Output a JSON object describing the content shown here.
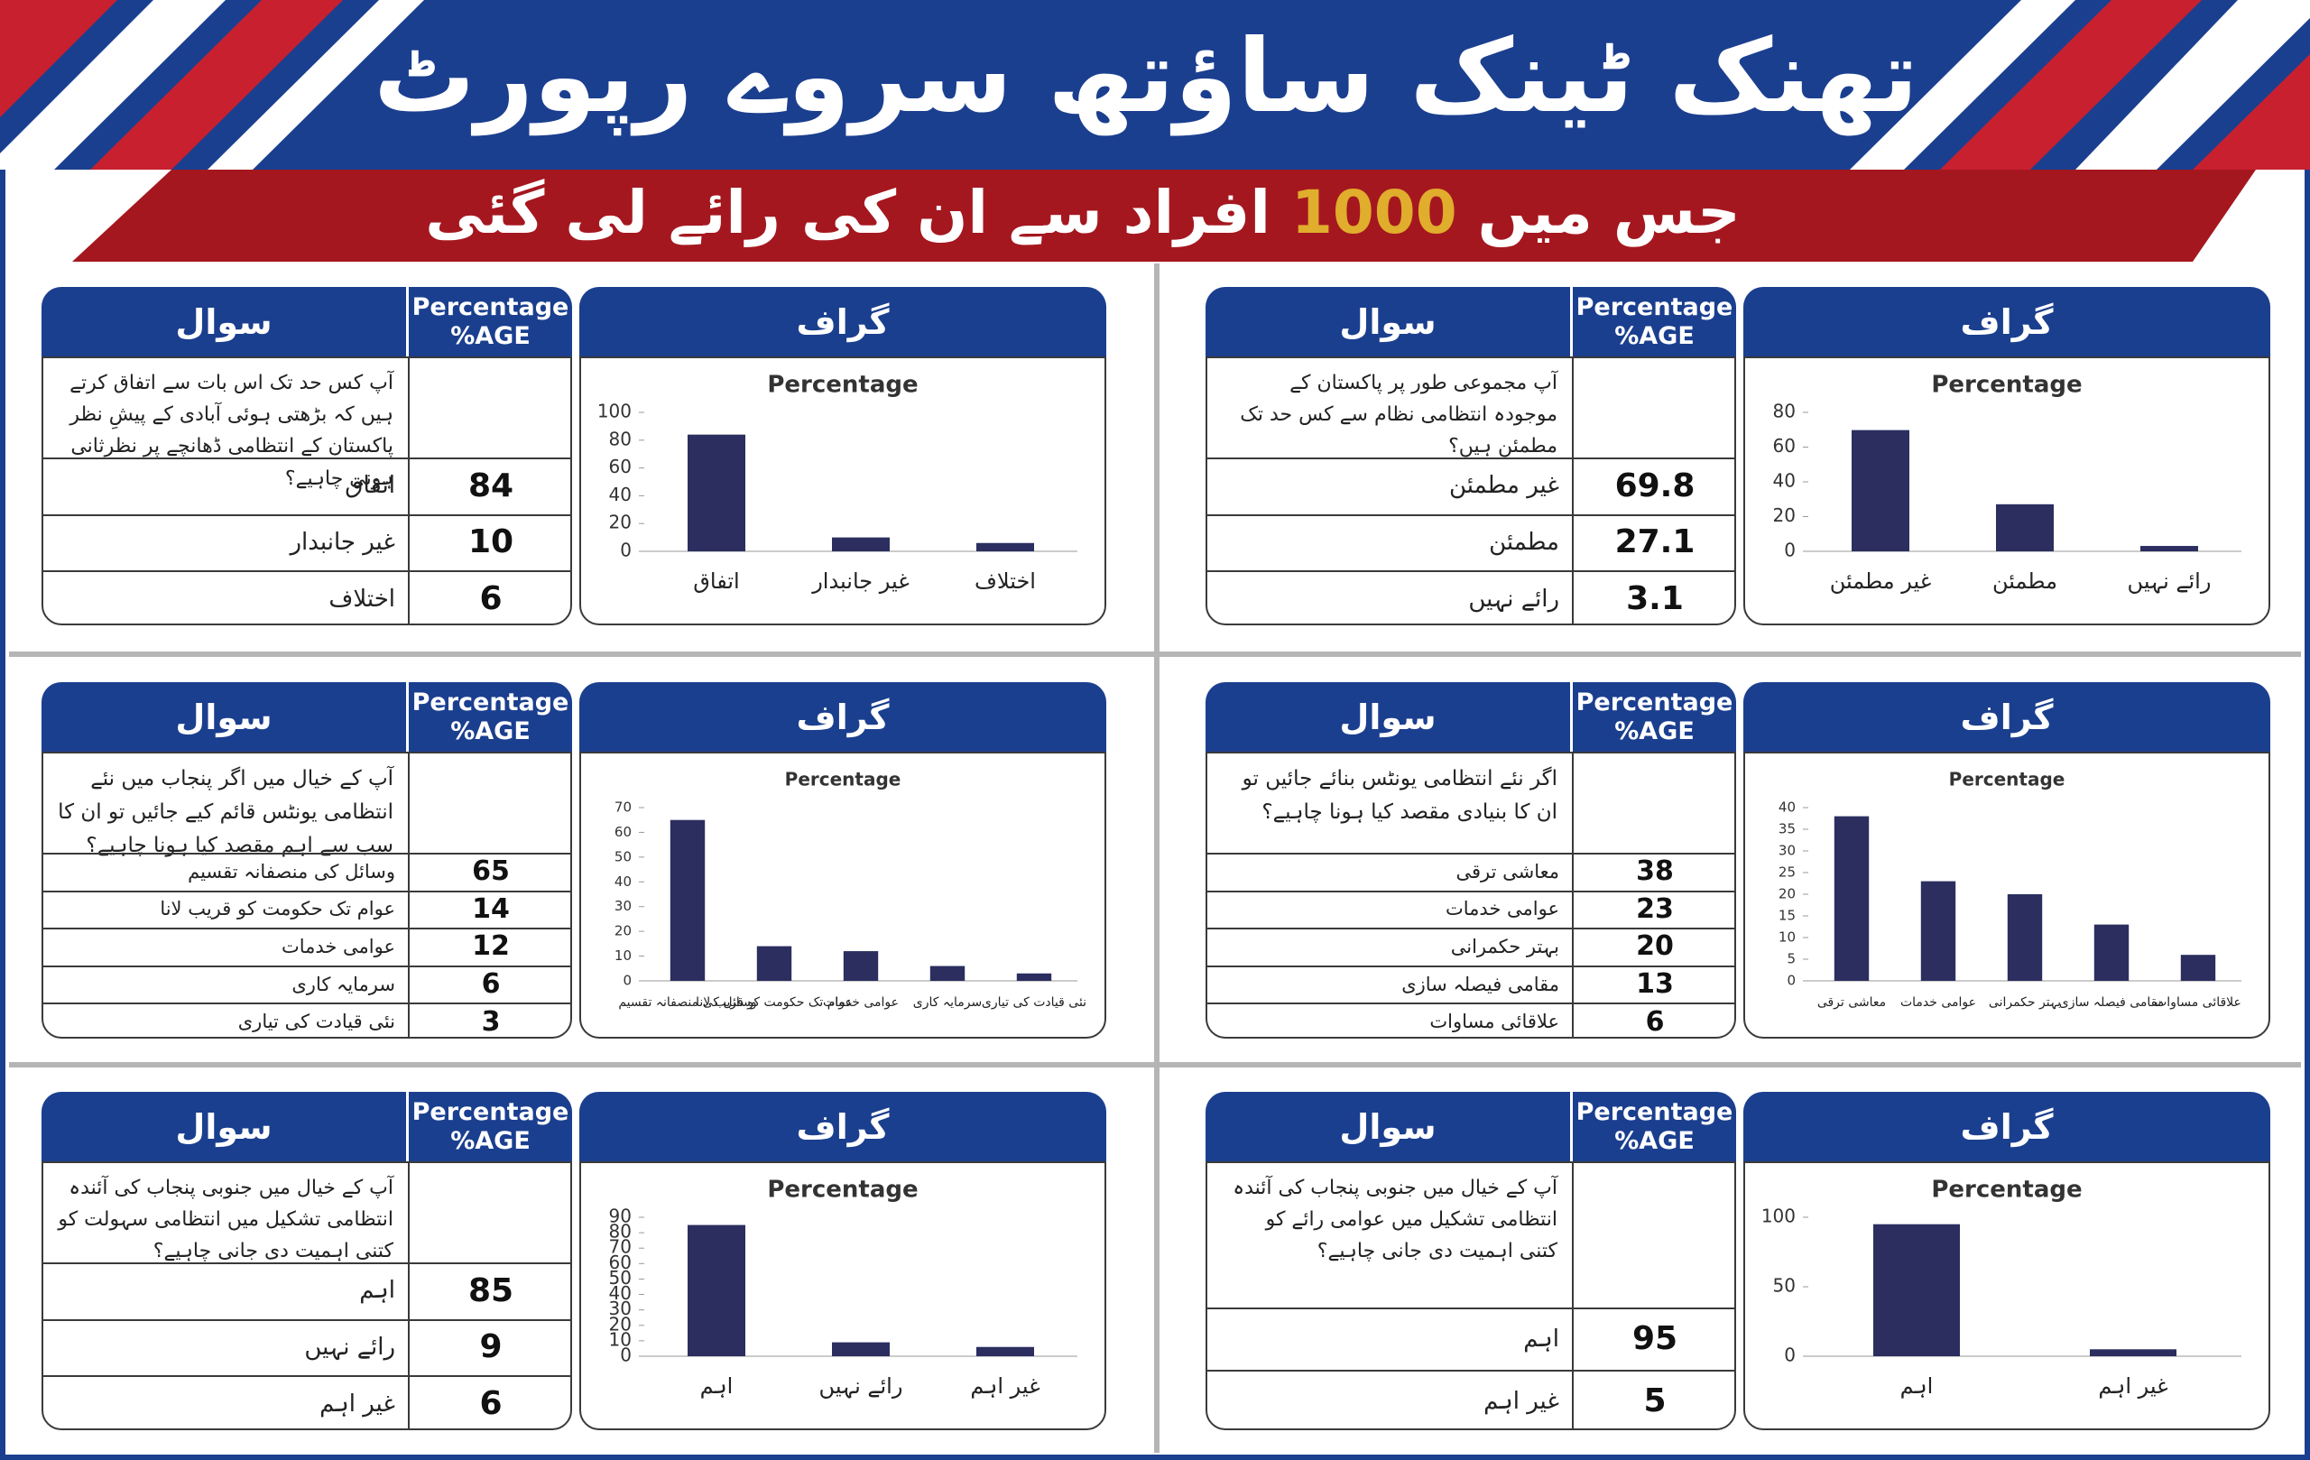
{
  "header": {
    "title": "تھنک ٹینک ساؤتھ سروے رپورٹ",
    "subtitle_before": "جس میں",
    "count": 1000,
    "subtitle_after": "افراد سے ان کی رائے لی گئی"
  },
  "panel_headers": {
    "question": "سوال",
    "percentage": "Percentage",
    "percentage_unit": "%AGE",
    "graph": "گراف"
  },
  "chart_data": [
    {
      "type": "bar",
      "title": "Percentage",
      "question": "آپ مجموعی طور پر پاکستان کے موجودہ انتظامی نظام سے کس حد تک مطمئن ہیں؟",
      "categories": [
        "غیر مطمئن",
        "مطمئن",
        "رائے نہیں"
      ],
      "values": [
        69.8,
        27.1,
        3.1
      ],
      "color": "#2b2e5f",
      "ylim": [
        0,
        80
      ],
      "yticks": [
        0,
        20,
        40,
        60,
        80
      ]
    },
    {
      "type": "bar",
      "title": "Percentage",
      "question": "آپ کس حد تک اس بات سے اتفاق کرتے ہیں کہ بڑھتی ہوئی آبادی کے پیشِ نظر پاکستان کے انتظامی ڈھانچے پر نظرثانی ہونی چاہیے؟",
      "categories": [
        "اتفاق",
        "غیر جانبدار",
        "اختلاف"
      ],
      "values": [
        84,
        10,
        6
      ],
      "color": "#2b2e5f",
      "ylim": [
        0,
        100
      ],
      "yticks": [
        0,
        20,
        40,
        60,
        80,
        100
      ]
    },
    {
      "type": "bar",
      "title": "Percentage",
      "question": "اگر نئے انتظامی یونٹس بنائے جائیں تو ان کا بنیادی مقصد کیا ہونا چاہیے؟",
      "categories": [
        "معاشی ترقی",
        "عوامی خدمات",
        "بہتر حکمرانی",
        "مقامی فیصلہ سازی",
        "علاقائی مساوات"
      ],
      "values": [
        38,
        23,
        20,
        13,
        6
      ],
      "color": "#2b2e5f",
      "ylim": [
        0,
        40
      ],
      "yticks": [
        0,
        5,
        10,
        15,
        20,
        25,
        30,
        35,
        40
      ]
    },
    {
      "type": "bar",
      "title": "Percentage",
      "question": "آپ کے خیال میں اگر پنجاب میں نئے انتظامی یونٹس قائم کیے جائیں تو ان کا سب سے اہم مقصد کیا ہونا چاہیے؟",
      "categories": [
        "وسائل کی منصفانہ تقسیم",
        "عوام تک حکومت کو قریب لانا",
        "عوامی خدمات",
        "سرمایہ کاری",
        "نئی قیادت کی تیاری"
      ],
      "values": [
        65,
        14,
        12,
        6,
        3
      ],
      "color": "#2b2e5f",
      "ylim": [
        0,
        70
      ],
      "yticks": [
        0,
        10,
        20,
        30,
        40,
        50,
        60,
        70
      ]
    },
    {
      "type": "bar",
      "title": "Percentage",
      "question": "آپ کے خیال میں جنوبی پنجاب کی آئندہ انتظامی تشکیل میں عوامی رائے کو کتنی اہمیت دی جانی چاہیے؟",
      "categories": [
        "اہم",
        "غیر اہم"
      ],
      "values": [
        95,
        5
      ],
      "color": "#2b2e5f",
      "ylim": [
        0,
        100
      ],
      "yticks": [
        0,
        50,
        100
      ]
    },
    {
      "type": "bar",
      "title": "Percentage",
      "question": "آپ کے خیال میں جنوبی پنجاب کی آئندہ انتظامی تشکیل میں انتظامی سہولت کو کتنی اہمیت دی جانی چاہیے؟",
      "categories": [
        "اہم",
        "رائے نہیں",
        "غیر اہم"
      ],
      "values": [
        85,
        9,
        6
      ],
      "color": "#2b2e5f",
      "ylim": [
        0,
        90
      ],
      "yticks": [
        0,
        10,
        20,
        30,
        40,
        50,
        60,
        70,
        80,
        90
      ]
    }
  ]
}
